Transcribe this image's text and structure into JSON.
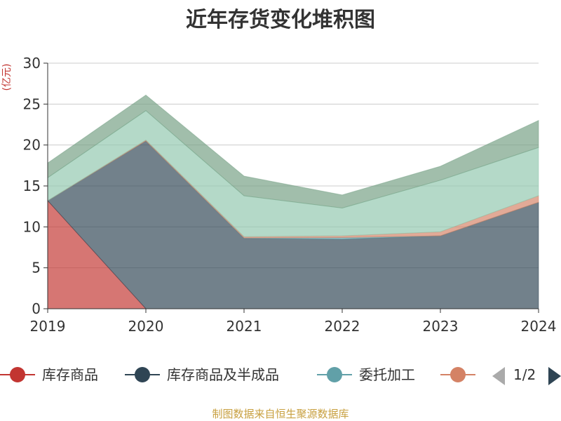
{
  "chart_data": {
    "type": "area",
    "stacked": true,
    "title": "近年存货变化堆积图",
    "ylabel": "(亿元)",
    "xlabel": "",
    "x": [
      "2019",
      "2020",
      "2021",
      "2022",
      "2023",
      "2024"
    ],
    "ylim": [
      0,
      30
    ],
    "yticks": [
      0,
      5,
      10,
      15,
      20,
      25,
      30
    ],
    "grid": true,
    "legend_position": "bottom",
    "series": [
      {
        "name": "库存商品",
        "color": "#c23531",
        "values": [
          13.2,
          0,
          0,
          0,
          0,
          0
        ]
      },
      {
        "name": "库存商品及半成品",
        "color": "#2f4554",
        "values": [
          0,
          20.5,
          8.6,
          8.5,
          8.9,
          13.0
        ]
      },
      {
        "name": "委托加工",
        "color": "#61a0a8",
        "values": [
          0,
          0,
          0.05,
          0.2,
          0,
          0
        ]
      },
      {
        "name": "",
        "color": "#d48265",
        "values": [
          0,
          0.1,
          0.15,
          0.2,
          0.5,
          0.8
        ]
      },
      {
        "name": "",
        "color": "#91c7ae",
        "values": [
          2.8,
          3.6,
          5.0,
          3.4,
          6.3,
          5.9
        ]
      },
      {
        "name": "",
        "color": "#749f83",
        "values": [
          1.8,
          1.9,
          2.4,
          1.6,
          1.7,
          3.3
        ]
      }
    ]
  },
  "legend": {
    "page_indicator": "1/2",
    "visible_count": 4
  },
  "footer": {
    "source": "制图数据来自恒生聚源数据库"
  }
}
